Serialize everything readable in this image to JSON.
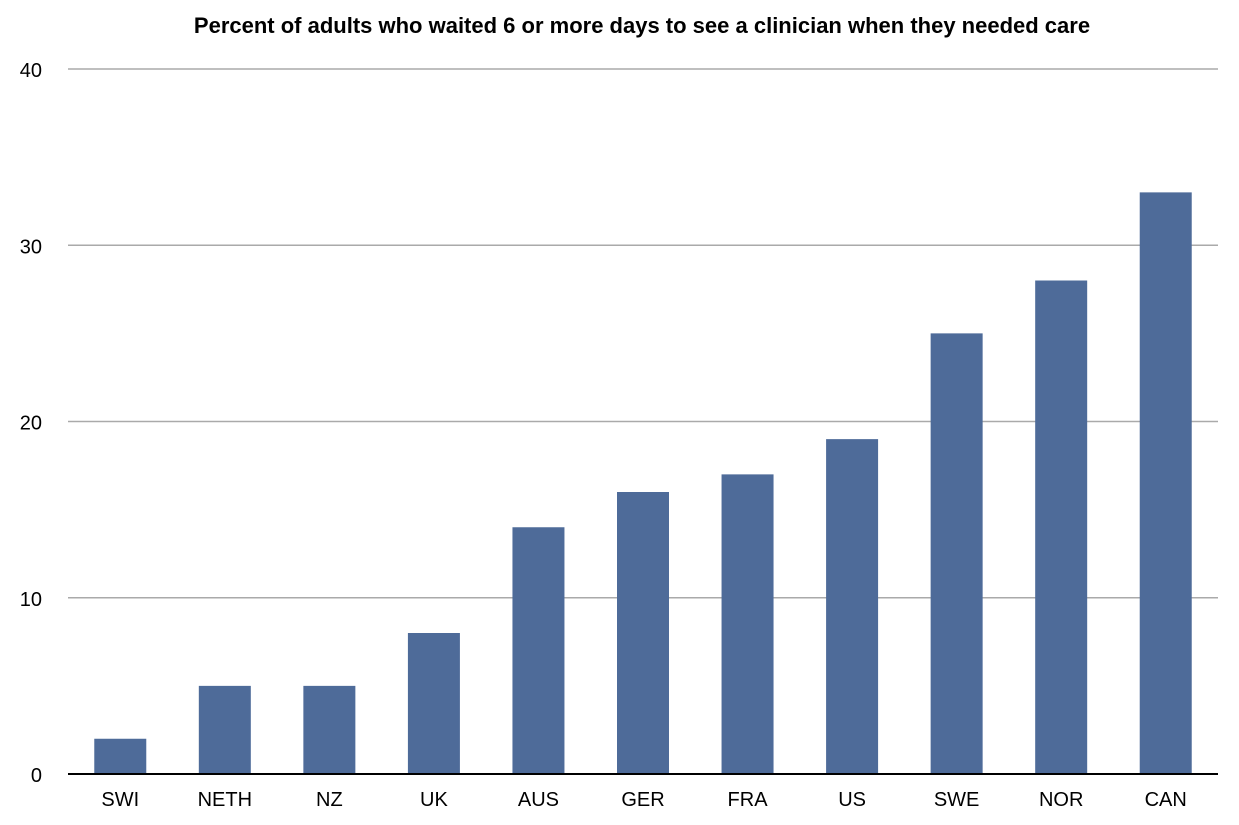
{
  "chart_data": {
    "type": "bar",
    "title": "Percent of adults who waited 6 or more days to see a clinician when they needed care",
    "xlabel": "",
    "ylabel": "",
    "categories": [
      "SWI",
      "NETH",
      "NZ",
      "UK",
      "AUS",
      "GER",
      "FRA",
      "US",
      "SWE",
      "NOR",
      "CAN"
    ],
    "values": [
      2,
      5,
      5,
      8,
      14,
      16,
      17,
      19,
      25,
      28,
      33
    ],
    "ylim": [
      0,
      40
    ],
    "yticks": [
      0,
      10,
      20,
      30,
      40
    ],
    "grid": true,
    "legend": "none",
    "colors": {
      "bar": "#4e6b99",
      "grid": "#aaaaaa",
      "axis": "#000000"
    }
  }
}
